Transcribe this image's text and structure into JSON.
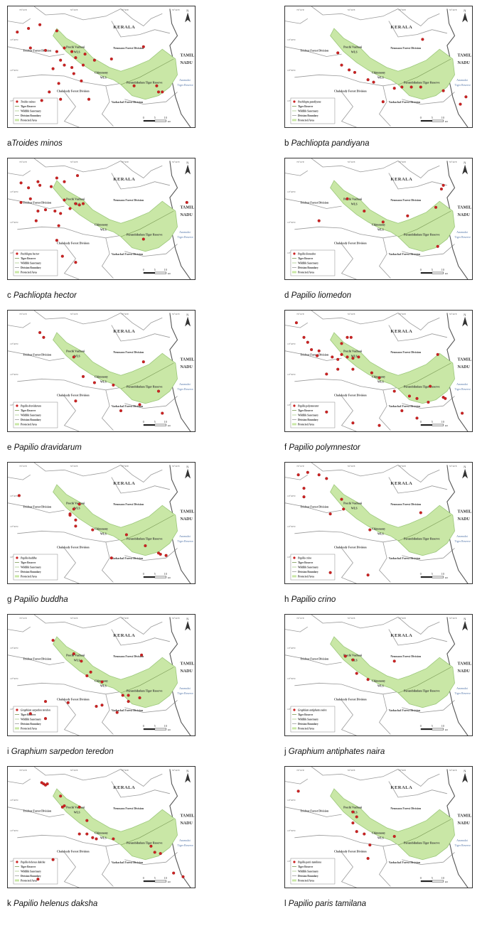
{
  "map_labels": {
    "state": "KERALA",
    "state2_line1": "TAMIL",
    "state2_line2": "NADU",
    "trichur": "Trichur Forest Division",
    "peechi_line1": "Peechi Vazhani",
    "peechi_line2": "WLS",
    "nenmara": "Nenmara Forest Division",
    "chimmony_line1": "Chimmony",
    "chimmony_line2": "WLS",
    "parambikulam": "Parambikulam Tiger Reserve",
    "anamalai_line1": "Anamalai",
    "anamalai_line2": "Tiger Reserve",
    "chalakudy": "Chalakudy Forest Division",
    "vazhachal": "Vazhachal Forest Division",
    "scale_0": "0",
    "scale_5": "5",
    "scale_10": "10",
    "scale_unit": "km",
    "north": "N",
    "graticule_top": [
      "76°10'E",
      "76°20'E",
      "76°30'E",
      "76°40'E"
    ],
    "graticule_left": [
      "10°40'N",
      "10°30'N",
      "10°20'N"
    ]
  },
  "legend": {
    "tiger_reserve": "Tiger Reserve",
    "wildlife_sanctuary": "Wildlife Sanctuary",
    "division_boundary": "Division Boundary",
    "protected_area": "Protected Area"
  },
  "colors": {
    "protected_area_fill": "#c9e7a6",
    "protected_area_stroke": "#9bc77a",
    "boundary": "#9a9a9a",
    "state_border": "#555555",
    "record_point": "#cc2222",
    "reserve_line": "#7a9a55"
  },
  "panels": [
    {
      "letter": "a",
      "species": "Troides minos",
      "legend_species": "Troides minos",
      "points": [
        [
          0.05,
          0.21
        ],
        [
          0.11,
          0.18
        ],
        [
          0.17,
          0.15
        ],
        [
          0.26,
          0.2
        ],
        [
          0.12,
          0.34
        ],
        [
          0.2,
          0.36
        ],
        [
          0.26,
          0.37
        ],
        [
          0.3,
          0.34
        ],
        [
          0.34,
          0.37
        ],
        [
          0.36,
          0.42
        ],
        [
          0.41,
          0.39
        ],
        [
          0.28,
          0.44
        ],
        [
          0.3,
          0.48
        ],
        [
          0.24,
          0.51
        ],
        [
          0.34,
          0.5
        ],
        [
          0.4,
          0.48
        ],
        [
          0.46,
          0.44
        ],
        [
          0.35,
          0.55
        ],
        [
          0.55,
          0.43
        ],
        [
          0.27,
          0.63
        ],
        [
          0.39,
          0.61
        ],
        [
          0.22,
          0.7
        ],
        [
          0.18,
          0.77
        ],
        [
          0.28,
          0.76
        ],
        [
          0.43,
          0.76
        ],
        [
          0.67,
          0.65
        ],
        [
          0.79,
          0.65
        ],
        [
          0.8,
          0.7
        ],
        [
          0.82,
          0.7
        ],
        [
          0.72,
          0.33
        ]
      ]
    },
    {
      "letter": "b",
      "species": "Pachliopta pandiyana",
      "legend_species": "Pachliopta pandiyana",
      "points": [
        [
          0.28,
          0.38
        ],
        [
          0.3,
          0.48
        ],
        [
          0.34,
          0.52
        ],
        [
          0.37,
          0.54
        ],
        [
          0.44,
          0.6
        ],
        [
          0.47,
          0.62
        ],
        [
          0.62,
          0.66
        ],
        [
          0.67,
          0.66
        ],
        [
          0.72,
          0.66
        ],
        [
          0.84,
          0.69
        ],
        [
          0.58,
          0.67
        ],
        [
          0.52,
          0.78
        ],
        [
          0.93,
          0.8
        ],
        [
          0.96,
          0.74
        ],
        [
          0.73,
          0.27
        ]
      ]
    },
    {
      "letter": "c",
      "species": "Pachliopta hector",
      "legend_species": "Pachliopta hector",
      "points": [
        [
          0.07,
          0.2
        ],
        [
          0.11,
          0.24
        ],
        [
          0.16,
          0.19
        ],
        [
          0.17,
          0.22
        ],
        [
          0.23,
          0.23
        ],
        [
          0.26,
          0.16
        ],
        [
          0.3,
          0.19
        ],
        [
          0.37,
          0.14
        ],
        [
          0.07,
          0.36
        ],
        [
          0.12,
          0.33
        ],
        [
          0.16,
          0.43
        ],
        [
          0.2,
          0.42
        ],
        [
          0.25,
          0.43
        ],
        [
          0.28,
          0.45
        ],
        [
          0.36,
          0.37
        ],
        [
          0.38,
          0.38
        ],
        [
          0.4,
          0.37
        ],
        [
          0.33,
          0.41
        ],
        [
          0.3,
          0.34
        ],
        [
          0.15,
          0.51
        ],
        [
          0.27,
          0.55
        ],
        [
          0.26,
          0.67
        ],
        [
          0.29,
          0.8
        ],
        [
          0.36,
          0.85
        ],
        [
          0.72,
          0.66
        ],
        [
          0.95,
          0.36
        ]
      ]
    },
    {
      "letter": "d",
      "species": "Papilio liomedon",
      "legend_species": "Papilio liomedon",
      "points": [
        [
          0.33,
          0.33
        ],
        [
          0.42,
          0.43
        ],
        [
          0.52,
          0.52
        ],
        [
          0.65,
          0.47
        ],
        [
          0.83,
          0.25
        ],
        [
          0.84,
          0.22
        ],
        [
          0.8,
          0.4
        ],
        [
          0.18,
          0.51
        ],
        [
          0.81,
          0.72
        ]
      ]
    },
    {
      "letter": "e",
      "species": "Papilio dravidarum",
      "legend_species": "Papilio dravidarum",
      "points": [
        [
          0.17,
          0.18
        ],
        [
          0.19,
          0.22
        ],
        [
          0.35,
          0.38
        ],
        [
          0.4,
          0.54
        ],
        [
          0.46,
          0.59
        ],
        [
          0.56,
          0.61
        ],
        [
          0.72,
          0.42
        ],
        [
          0.8,
          0.66
        ],
        [
          0.36,
          0.74
        ],
        [
          0.6,
          0.82
        ],
        [
          0.7,
          0.77
        ],
        [
          0.82,
          0.84
        ]
      ]
    },
    {
      "letter": "f",
      "species": "Papilio polymnestor",
      "legend_species": "Papilio polymnestor",
      "points": [
        [
          0.06,
          0.1
        ],
        [
          0.1,
          0.22
        ],
        [
          0.12,
          0.26
        ],
        [
          0.14,
          0.32
        ],
        [
          0.18,
          0.33
        ],
        [
          0.17,
          0.37
        ],
        [
          0.25,
          0.38
        ],
        [
          0.28,
          0.4
        ],
        [
          0.3,
          0.36
        ],
        [
          0.33,
          0.38
        ],
        [
          0.36,
          0.39
        ],
        [
          0.39,
          0.38
        ],
        [
          0.33,
          0.22
        ],
        [
          0.35,
          0.22
        ],
        [
          0.3,
          0.27
        ],
        [
          0.28,
          0.48
        ],
        [
          0.22,
          0.52
        ],
        [
          0.36,
          0.48
        ],
        [
          0.46,
          0.51
        ],
        [
          0.5,
          0.55
        ],
        [
          0.58,
          0.66
        ],
        [
          0.66,
          0.7
        ],
        [
          0.7,
          0.72
        ],
        [
          0.76,
          0.75
        ],
        [
          0.84,
          0.71
        ],
        [
          0.85,
          0.72
        ],
        [
          0.77,
          0.62
        ],
        [
          0.62,
          0.82
        ],
        [
          0.7,
          0.88
        ],
        [
          0.94,
          0.84
        ],
        [
          0.22,
          0.83
        ],
        [
          0.36,
          0.92
        ],
        [
          0.5,
          0.94
        ],
        [
          0.81,
          0.36
        ]
      ]
    },
    {
      "letter": "g",
      "species": "Papilio buddha",
      "legend_species": "Papilio buddha",
      "points": [
        [
          0.06,
          0.27
        ],
        [
          0.38,
          0.34
        ],
        [
          0.35,
          0.38
        ],
        [
          0.33,
          0.42
        ],
        [
          0.33,
          0.43
        ],
        [
          0.36,
          0.47
        ],
        [
          0.36,
          0.52
        ],
        [
          0.45,
          0.55
        ],
        [
          0.63,
          0.59
        ],
        [
          0.73,
          0.68
        ],
        [
          0.8,
          0.74
        ],
        [
          0.81,
          0.75
        ],
        [
          0.84,
          0.76
        ],
        [
          0.55,
          0.78
        ]
      ]
    },
    {
      "letter": "h",
      "species": "Papilio crino",
      "legend_species": "Papilio crino",
      "points": [
        [
          0.07,
          0.1
        ],
        [
          0.12,
          0.08
        ],
        [
          0.18,
          0.1
        ],
        [
          0.22,
          0.13
        ],
        [
          0.1,
          0.21
        ],
        [
          0.3,
          0.3
        ],
        [
          0.31,
          0.38
        ],
        [
          0.1,
          0.28
        ],
        [
          0.24,
          0.42
        ],
        [
          0.45,
          0.55
        ],
        [
          0.72,
          0.41
        ],
        [
          0.24,
          0.9
        ],
        [
          0.44,
          0.92
        ]
      ]
    },
    {
      "letter": "i",
      "species": "Graphium sarpedon teredon",
      "legend_species": "Graphium sarpedon teredon",
      "points": [
        [
          0.24,
          0.21
        ],
        [
          0.35,
          0.32
        ],
        [
          0.39,
          0.38
        ],
        [
          0.44,
          0.47
        ],
        [
          0.42,
          0.5
        ],
        [
          0.5,
          0.55
        ],
        [
          0.61,
          0.66
        ],
        [
          0.64,
          0.66
        ],
        [
          0.64,
          0.71
        ],
        [
          0.7,
          0.68
        ],
        [
          0.47,
          0.75
        ],
        [
          0.5,
          0.74
        ],
        [
          0.58,
          0.8
        ],
        [
          0.71,
          0.33
        ],
        [
          0.2,
          0.71
        ],
        [
          0.32,
          0.72
        ],
        [
          0.12,
          0.81
        ],
        [
          0.2,
          0.85
        ]
      ]
    },
    {
      "letter": "j",
      "species": "Graphium antiphates naira",
      "legend_species": "Graphium antiphates naira",
      "points": [
        [
          0.32,
          0.34
        ],
        [
          0.36,
          0.37
        ],
        [
          0.38,
          0.48
        ],
        [
          0.44,
          0.53
        ],
        [
          0.58,
          0.38
        ]
      ]
    },
    {
      "letter": "k",
      "species": "Papilio helenus daksha",
      "legend_species": "Papilio helenus daksha",
      "points": [
        [
          0.18,
          0.13
        ],
        [
          0.19,
          0.14
        ],
        [
          0.2,
          0.15
        ],
        [
          0.21,
          0.14
        ],
        [
          0.28,
          0.24
        ],
        [
          0.29,
          0.33
        ],
        [
          0.3,
          0.32
        ],
        [
          0.38,
          0.33
        ],
        [
          0.42,
          0.44
        ],
        [
          0.38,
          0.55
        ],
        [
          0.42,
          0.55
        ],
        [
          0.45,
          0.58
        ],
        [
          0.47,
          0.59
        ],
        [
          0.56,
          0.59
        ],
        [
          0.76,
          0.65
        ],
        [
          0.78,
          0.7
        ],
        [
          0.81,
          0.71
        ],
        [
          0.24,
          0.76
        ],
        [
          0.16,
          0.92
        ],
        [
          0.88,
          0.87
        ],
        [
          0.93,
          0.9
        ]
      ]
    },
    {
      "letter": "l",
      "species": "Papilio paris tamilana",
      "legend_species": "Papilio paris tamilana",
      "points": [
        [
          0.07,
          0.2
        ],
        [
          0.36,
          0.37
        ],
        [
          0.38,
          0.41
        ],
        [
          0.36,
          0.46
        ],
        [
          0.38,
          0.53
        ],
        [
          0.42,
          0.55
        ],
        [
          0.45,
          0.64
        ],
        [
          0.44,
          0.75
        ],
        [
          0.58,
          0.57
        ]
      ]
    }
  ]
}
